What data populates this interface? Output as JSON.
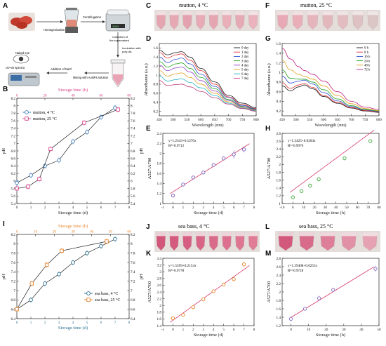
{
  "panels": {
    "A": {
      "letter": "A",
      "steps": {
        "homogenization": "Homogenization",
        "centrifugation": "Centrifugation",
        "supernatant": [
          "Collection of",
          "the supernatant"
        ],
        "incubation": [
          "Incubation with",
          "poly-dA",
          "s"
        ],
        "mixing": "Mixing with AuNPs solution",
        "nacl": "Addition of NaCl",
        "naked_eye": "Naked-eye",
        "uvvis": "UV-vis spectra"
      },
      "device_display": "3000"
    },
    "B": {
      "letter": "B",
      "top_axis_label": "Storage time (h)",
      "bottom_axis_label": "Storage time (d)",
      "left_axis_label": "pH",
      "right_axis_label": "pH"
    },
    "C": {
      "letter": "C",
      "title": "mutton, 4 °C"
    },
    "D": {
      "letter": "D",
      "xlabel": "Wavelength (nm)",
      "ylabel": "Absorbance (a.u.)"
    },
    "E": {
      "letter": "E",
      "xlabel": "Storage time (d)",
      "ylabel": "A527/A700",
      "eq1": "y=1.2343+0.1270x",
      "eq2": "R²=0.9712"
    },
    "F": {
      "letter": "F",
      "title": "mutton, 25 °C"
    },
    "G": {
      "letter": "G",
      "xlabel": "Wavelength (nm)",
      "ylabel": "Absorbance (a.u.)"
    },
    "H": {
      "letter": "H",
      "xlabel": "Storage time (h)",
      "ylabel": "A527/A700",
      "eq1": "y=1.3425+0.0204x",
      "eq2": "R²=0.9976"
    },
    "I": {
      "letter": "I",
      "top_axis_label": "Storage time (h)",
      "bottom_axis_label": "Storage time (d)",
      "left_axis_label": "pH",
      "right_axis_label": "pH"
    },
    "J": {
      "letter": "J",
      "title": "sea bass, 4 °C"
    },
    "K": {
      "letter": "K",
      "xlabel": "Storage time (d)",
      "ylabel": "A527/A700",
      "eq1": "y=1.5599+0.2154x",
      "eq2": "R²=0.9778"
    },
    "L": {
      "letter": "L",
      "title": "sea bass, 25 °C"
    },
    "M": {
      "letter": "M",
      "xlabel": "Storage time (h)",
      "ylabel": "A527/A700",
      "eq1": "y=1.39408+0.0255x",
      "eq2": "R²=0.9728"
    }
  },
  "colors": {
    "mutton_4": "#3f7fbf",
    "mutton_25": "#d6458a",
    "seabass_4": "#2a6f8f",
    "seabass_25": "#e8832a",
    "fit_line": "#d63a6a",
    "top_axis_pink": "#d6458a",
    "top_axis_orange": "#e8832a",
    "bottom_axis_blue": "#2a6f8f",
    "E_marker": "#7a5ab5",
    "H_marker": "#3aa83a",
    "K_marker": "#e8832a",
    "M_marker": "#8a6ac0"
  },
  "chart_data": [
    {
      "panel": "B",
      "type": "line",
      "xlabel": "Storage time (d)",
      "x2label": "Storage time (h)",
      "ylabel": "pH",
      "xlim": [
        0,
        8
      ],
      "x2lim": [
        0,
        80
      ],
      "ylim": [
        5.4,
        8.2
      ],
      "x_ticks": [
        0,
        1,
        2,
        3,
        4,
        5,
        6,
        7,
        8
      ],
      "x2_ticks": [
        0,
        20,
        40,
        60,
        80
      ],
      "y_ticks": [
        5.4,
        5.6,
        5.8,
        6.0,
        6.2,
        6.4,
        6.6,
        6.8,
        7.0,
        7.2,
        7.4,
        7.6,
        7.8,
        8.0,
        8.2
      ],
      "legend_position": "top-left",
      "series": [
        {
          "name": "mutton, 4 °C",
          "axis": "bottom",
          "marker": "circle",
          "color": "#3f7fbf",
          "x": [
            0,
            1,
            2,
            3,
            4,
            5,
            6,
            7
          ],
          "y": [
            5.95,
            6.15,
            6.4,
            6.55,
            7.05,
            7.3,
            7.7,
            7.95
          ]
        },
        {
          "name": "mutton, 25 °C",
          "axis": "top",
          "marker": "square",
          "color": "#d6458a",
          "x": [
            0,
            8,
            16,
            24,
            48,
            72
          ],
          "y": [
            5.8,
            5.85,
            6.05,
            6.85,
            7.55,
            7.9
          ]
        }
      ]
    },
    {
      "panel": "D",
      "type": "line",
      "xlabel": "Wavelength (nm)",
      "ylabel": "Absorbance (a.u.)",
      "xlim": [
        450,
        800
      ],
      "ylim": [
        0.1,
        1.7
      ],
      "x_ticks": [
        450,
        500,
        550,
        600,
        650,
        700,
        750,
        800
      ],
      "y_ticks": [
        0.2,
        0.4,
        0.6,
        0.8,
        1.0,
        1.2,
        1.4,
        1.6
      ],
      "legend_position": "top-right",
      "series": [
        {
          "name": "0 day",
          "color": "#1a1a1a",
          "x": [
            450,
            480,
            510,
            530,
            560,
            600,
            650,
            700,
            750,
            800
          ],
          "y": [
            1.55,
            1.45,
            1.5,
            1.52,
            1.4,
            1.15,
            0.85,
            0.55,
            0.38,
            0.28
          ]
        },
        {
          "name": "1 day",
          "color": "#e03030",
          "x": [
            450,
            480,
            510,
            530,
            560,
            600,
            650,
            700,
            750,
            800
          ],
          "y": [
            1.5,
            1.38,
            1.45,
            1.47,
            1.33,
            1.1,
            0.8,
            0.52,
            0.35,
            0.26
          ]
        },
        {
          "name": "2 day",
          "color": "#3050d0",
          "x": [
            450,
            480,
            510,
            530,
            560,
            600,
            650,
            700,
            750,
            800
          ],
          "y": [
            1.4,
            1.28,
            1.35,
            1.38,
            1.25,
            1.02,
            0.75,
            0.5,
            0.33,
            0.25
          ]
        },
        {
          "name": "3 day",
          "color": "#20a020",
          "x": [
            450,
            480,
            510,
            530,
            560,
            600,
            650,
            700,
            750,
            800
          ],
          "y": [
            1.3,
            1.18,
            1.25,
            1.27,
            1.15,
            0.95,
            0.7,
            0.46,
            0.31,
            0.24
          ]
        },
        {
          "name": "4 day",
          "color": "#9040c0",
          "x": [
            450,
            480,
            510,
            530,
            560,
            600,
            650,
            700,
            750,
            800
          ],
          "y": [
            1.22,
            1.1,
            1.16,
            1.18,
            1.07,
            0.88,
            0.65,
            0.44,
            0.3,
            0.23
          ]
        },
        {
          "name": "5 day",
          "color": "#e0a020",
          "x": [
            450,
            480,
            510,
            530,
            560,
            600,
            650,
            700,
            750,
            800
          ],
          "y": [
            1.1,
            0.98,
            1.03,
            1.05,
            0.95,
            0.8,
            0.6,
            0.41,
            0.28,
            0.22
          ]
        },
        {
          "name": "6 day",
          "color": "#20b0c0",
          "x": [
            450,
            480,
            510,
            530,
            560,
            600,
            650,
            700,
            750,
            800
          ],
          "y": [
            0.98,
            0.87,
            0.9,
            0.92,
            0.84,
            0.72,
            0.55,
            0.38,
            0.27,
            0.21
          ]
        },
        {
          "name": "7 day",
          "color": "#c04080",
          "x": [
            450,
            480,
            510,
            530,
            560,
            600,
            650,
            700,
            750,
            800
          ],
          "y": [
            0.88,
            0.77,
            0.79,
            0.8,
            0.74,
            0.64,
            0.5,
            0.36,
            0.26,
            0.2
          ]
        }
      ]
    },
    {
      "panel": "G",
      "type": "line",
      "xlabel": "Wavelength (nm)",
      "ylabel": "Absorbance (a.u.)",
      "xlim": [
        450,
        800
      ],
      "ylim": [
        0.1,
        1.6
      ],
      "x_ticks": [
        450,
        500,
        550,
        600,
        650,
        700,
        750,
        800
      ],
      "y_ticks": [
        0.2,
        0.4,
        0.6,
        0.8,
        1.0,
        1.2,
        1.4,
        1.6
      ],
      "legend_position": "top-right",
      "series": [
        {
          "name": "0 h",
          "color": "#1a1a1a",
          "x": [
            450,
            480,
            510,
            530,
            560,
            600,
            650,
            700,
            750,
            800
          ],
          "y": [
            0.72,
            0.62,
            0.7,
            0.74,
            0.66,
            0.5,
            0.36,
            0.26,
            0.2,
            0.17
          ]
        },
        {
          "name": "8 h",
          "color": "#e03030",
          "x": [
            450,
            480,
            510,
            530,
            560,
            600,
            650,
            700,
            750,
            800
          ],
          "y": [
            0.78,
            0.67,
            0.74,
            0.77,
            0.69,
            0.52,
            0.38,
            0.27,
            0.21,
            0.18
          ]
        },
        {
          "name": "16 h",
          "color": "#3050d0",
          "x": [
            450,
            480,
            510,
            530,
            560,
            600,
            650,
            700,
            750,
            800
          ],
          "y": [
            0.92,
            0.78,
            0.82,
            0.84,
            0.76,
            0.58,
            0.41,
            0.29,
            0.22,
            0.19
          ]
        },
        {
          "name": "24 h",
          "color": "#20a020",
          "x": [
            450,
            480,
            510,
            530,
            560,
            600,
            650,
            700,
            750,
            800
          ],
          "y": [
            1.05,
            0.88,
            0.86,
            0.86,
            0.8,
            0.64,
            0.45,
            0.31,
            0.23,
            0.2
          ]
        },
        {
          "name": "48 h",
          "color": "#e0a020",
          "x": [
            450,
            480,
            510,
            530,
            560,
            600,
            650,
            700,
            750,
            800
          ],
          "y": [
            1.25,
            1.05,
            0.96,
            0.92,
            0.86,
            0.72,
            0.52,
            0.35,
            0.25,
            0.21
          ]
        },
        {
          "name": "72 h",
          "color": "#c02080",
          "x": [
            450,
            480,
            510,
            530,
            560,
            600,
            650,
            700,
            750,
            800
          ],
          "y": [
            1.5,
            1.28,
            1.12,
            1.04,
            0.96,
            0.82,
            0.6,
            0.4,
            0.28,
            0.23
          ]
        }
      ]
    },
    {
      "panel": "E",
      "type": "scatter",
      "xlabel": "Storage time (d)",
      "ylabel": "A527/A700",
      "xlim": [
        -1,
        8
      ],
      "ylim": [
        1.0,
        2.4
      ],
      "x_ticks": [
        -1,
        0,
        1,
        2,
        3,
        4,
        5,
        6,
        7,
        8
      ],
      "y_ticks": [
        1.0,
        1.2,
        1.4,
        1.6,
        1.8,
        2.0,
        2.2,
        2.4
      ],
      "fit": {
        "intercept": 1.2343,
        "slope": 0.127
      },
      "series": [
        {
          "name": "",
          "x": [
            0,
            1,
            2,
            3,
            4,
            5,
            6,
            7
          ],
          "y": [
            1.16,
            1.38,
            1.52,
            1.62,
            1.77,
            1.9,
            1.98,
            2.08
          ],
          "err": [
            0.04,
            0.03,
            0.03,
            0.04,
            0.03,
            0.04,
            0.08,
            0.06
          ]
        }
      ]
    },
    {
      "panel": "H",
      "type": "scatter",
      "xlabel": "Storage time (h)",
      "ylabel": "A527/A700",
      "xlim": [
        -10,
        80
      ],
      "ylim": [
        1.0,
        2.8
      ],
      "x_ticks": [
        -10,
        0,
        10,
        20,
        30,
        40,
        50,
        60,
        70,
        80
      ],
      "y_ticks": [
        1.0,
        1.2,
        1.4,
        1.6,
        1.8,
        2.0,
        2.2,
        2.4,
        2.6,
        2.8
      ],
      "fit": {
        "intercept": 1.3425,
        "slope": 0.0204
      },
      "series": [
        {
          "name": "",
          "x": [
            0,
            8,
            16,
            24,
            48,
            72
          ],
          "y": [
            1.16,
            1.32,
            1.46,
            1.62,
            2.16,
            2.6
          ],
          "err": [
            0.05,
            0.04,
            0.05,
            0.05,
            0.05,
            0.05
          ]
        }
      ]
    },
    {
      "panel": "I",
      "type": "line",
      "xlabel": "Storage time (d)",
      "x2label": "Storage time (h)",
      "ylabel": "pH",
      "xlim": [
        0,
        8
      ],
      "x2lim": [
        0,
        60
      ],
      "ylim": [
        6.4,
        8.2
      ],
      "x_ticks": [
        0,
        1,
        2,
        3,
        4,
        5,
        6,
        7,
        8
      ],
      "x2_ticks": [
        0,
        10,
        20,
        30,
        40,
        50,
        60
      ],
      "y_ticks": [
        6.4,
        6.6,
        6.8,
        7.0,
        7.2,
        7.4,
        7.6,
        7.8,
        8.0,
        8.2
      ],
      "legend_position": "bottom-right",
      "series": [
        {
          "name": "sea bass, 4 °C",
          "axis": "bottom",
          "marker": "circle",
          "color": "#2a6f8f",
          "x": [
            0,
            1,
            2,
            3,
            4,
            5,
            6,
            7
          ],
          "y": [
            6.6,
            6.8,
            7.15,
            7.35,
            7.6,
            7.8,
            7.95,
            8.1
          ]
        },
        {
          "name": "sea bass, 25 °C",
          "axis": "top",
          "marker": "square",
          "color": "#e8832a",
          "x": [
            0,
            8,
            16,
            24,
            48
          ],
          "y": [
            6.6,
            7.15,
            7.55,
            7.85,
            8.05
          ]
        }
      ]
    },
    {
      "panel": "K",
      "type": "scatter",
      "xlabel": "Storage time (d)",
      "ylabel": "A527/A700",
      "xlim": [
        -1,
        8
      ],
      "ylim": [
        1.4,
        3.4
      ],
      "x_ticks": [
        -1,
        0,
        1,
        2,
        3,
        4,
        5,
        6,
        7,
        8
      ],
      "y_ticks": [
        1.4,
        1.6,
        1.8,
        2.0,
        2.2,
        2.4,
        2.6,
        2.8,
        3.0,
        3.2,
        3.4
      ],
      "fit": {
        "intercept": 1.5599,
        "slope": 0.2154
      },
      "series": [
        {
          "name": "",
          "x": [
            0,
            1,
            2,
            3,
            4,
            5,
            6,
            7
          ],
          "y": [
            1.62,
            1.72,
            1.95,
            2.18,
            2.42,
            2.62,
            2.78,
            3.22
          ],
          "err": [
            0.05,
            0.04,
            0.06,
            0.05,
            0.04,
            0.05,
            0.06,
            0.08
          ]
        }
      ]
    },
    {
      "panel": "M",
      "type": "scatter",
      "xlabel": "Storage time (h)",
      "ylabel": "A527/A700",
      "xlim": [
        -5,
        50
      ],
      "ylim": [
        1.2,
        2.8
      ],
      "x_ticks": [
        0,
        10,
        20,
        30,
        40,
        50
      ],
      "y_ticks": [
        1.2,
        1.4,
        1.6,
        1.8,
        2.0,
        2.2,
        2.4,
        2.6,
        2.8
      ],
      "fit": {
        "intercept": 1.39408,
        "slope": 0.0255
      },
      "series": [
        {
          "name": "",
          "x": [
            0,
            8,
            16,
            24,
            48
          ],
          "y": [
            1.36,
            1.6,
            1.85,
            2.05,
            2.55
          ],
          "err": [
            0.05,
            0.04,
            0.06,
            0.05,
            0.07
          ]
        }
      ]
    }
  ]
}
